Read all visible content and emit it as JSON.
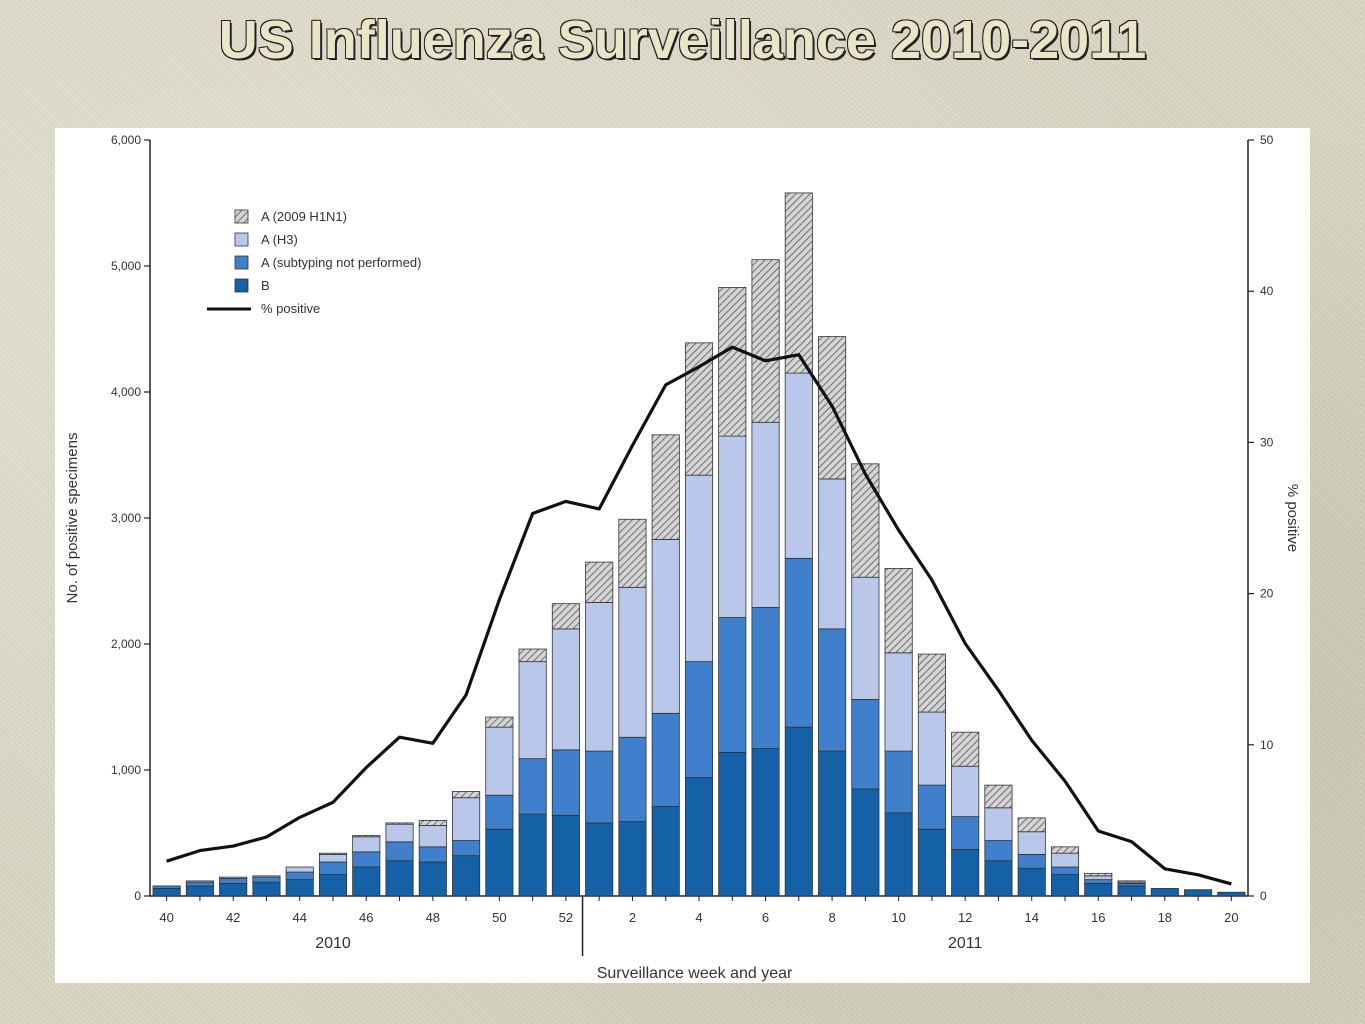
{
  "slide": {
    "title": "US Influenza Surveillance 2010-2011"
  },
  "chart_data": {
    "type": "bar",
    "stacked": true,
    "categories": [
      "40",
      "41",
      "42",
      "43",
      "44",
      "45",
      "46",
      "47",
      "48",
      "49",
      "50",
      "51",
      "52",
      "1",
      "2",
      "3",
      "4",
      "5",
      "6",
      "7",
      "8",
      "9",
      "10",
      "11",
      "12",
      "13",
      "14",
      "15",
      "16",
      "17",
      "18",
      "19",
      "20"
    ],
    "x_tick_labels": [
      "40",
      "42",
      "44",
      "46",
      "48",
      "50",
      "52",
      "2",
      "4",
      "6",
      "8",
      "10",
      "12",
      "14",
      "16",
      "18",
      "20"
    ],
    "year_labels": [
      "2010",
      "2011"
    ],
    "xlabel": "Surveillance week and year",
    "ylabel": "No. of positive specimens",
    "ylabel_right": "% positive",
    "ylim": [
      0,
      6000
    ],
    "ylim_right": [
      0,
      50
    ],
    "yticks": [
      "0",
      "1,000",
      "2,000",
      "3,000",
      "4,000",
      "5,000",
      "6,000"
    ],
    "yticks_right": [
      "0",
      "10",
      "20",
      "30",
      "40",
      "50"
    ],
    "legend_position": "top-left",
    "series": [
      {
        "name": "B",
        "color": "#1461a8",
        "values": [
          60,
          80,
          100,
          110,
          130,
          170,
          230,
          280,
          270,
          320,
          530,
          650,
          640,
          580,
          590,
          710,
          940,
          1140,
          1170,
          1340,
          1150,
          850,
          660,
          530,
          370,
          280,
          220,
          170,
          100,
          80,
          60,
          50,
          30
        ]
      },
      {
        "name": "A (subtyping not performed)",
        "color": "#3f7fcb",
        "values": [
          20,
          30,
          40,
          40,
          60,
          100,
          120,
          150,
          120,
          120,
          270,
          440,
          520,
          570,
          670,
          740,
          920,
          1070,
          1120,
          1340,
          970,
          710,
          490,
          350,
          260,
          160,
          110,
          60,
          30,
          20,
          0,
          0,
          0
        ]
      },
      {
        "name": "A (H3)",
        "color": "#b9c8ea",
        "values": [
          0,
          10,
          10,
          10,
          40,
          60,
          120,
          140,
          170,
          340,
          540,
          770,
          960,
          1180,
          1190,
          1380,
          1480,
          1440,
          1470,
          1470,
          1190,
          970,
          780,
          580,
          400,
          260,
          180,
          110,
          30,
          10,
          0,
          0,
          0
        ]
      },
      {
        "name": "A (2009 H1N1)",
        "color": "#cfcfcf",
        "values": [
          0,
          0,
          0,
          0,
          0,
          10,
          10,
          10,
          40,
          50,
          80,
          100,
          200,
          320,
          540,
          830,
          1050,
          1180,
          1290,
          1430,
          1130,
          900,
          670,
          460,
          270,
          180,
          110,
          50,
          20,
          10,
          0,
          0,
          0
        ]
      },
      {
        "name": "% positive",
        "type": "line",
        "axis": "right",
        "color": "#111111",
        "values": [
          2.3,
          3.0,
          3.3,
          3.9,
          5.2,
          6.2,
          8.5,
          10.5,
          10.1,
          13.3,
          19.6,
          25.3,
          26.1,
          25.6,
          29.8,
          33.8,
          35.0,
          36.3,
          35.4,
          35.8,
          32.4,
          27.9,
          24.2,
          20.9,
          16.7,
          13.6,
          10.3,
          7.6,
          4.3,
          3.6,
          1.8,
          1.4,
          0.8
        ]
      }
    ]
  }
}
